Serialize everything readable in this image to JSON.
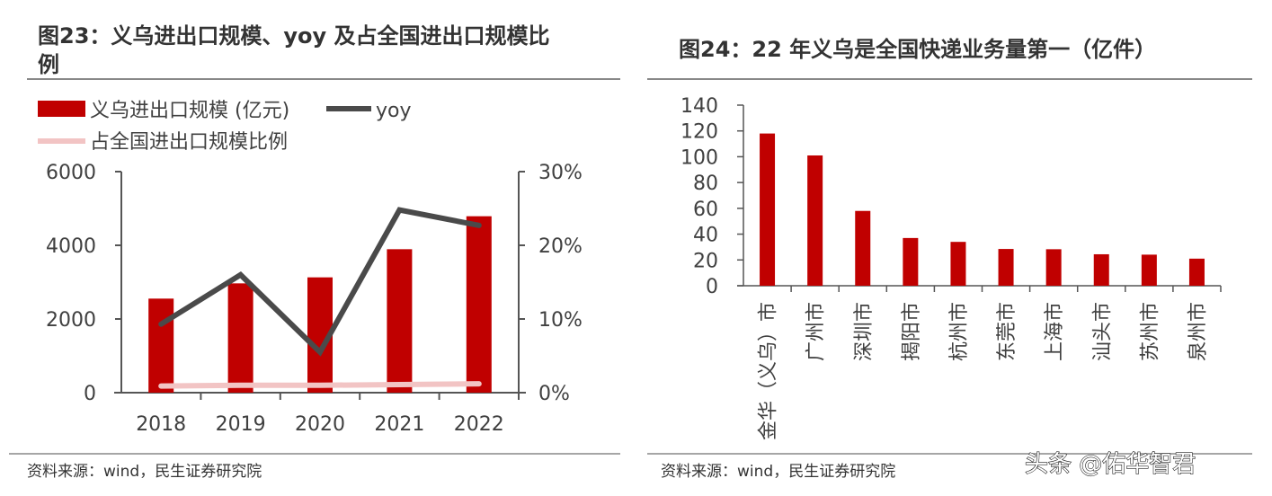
{
  "colors": {
    "bar": "#c00000",
    "yoy": "#4a4a4a",
    "share": "#f2c4c4",
    "axis": "#555555"
  },
  "chart_data": [
    {
      "type": "bar+line",
      "title": "图23：义乌进出口规模、yoy 及占全国进出口规模比例",
      "title_lines": [
        "图23：义乌进出口规模、yoy 及占全国进出口规模比",
        "例"
      ],
      "categories": [
        "2018",
        "2019",
        "2020",
        "2021",
        "2022"
      ],
      "series": [
        {
          "name": "义乌进出口规模 (亿元)",
          "type": "bar",
          "axis": "left",
          "values": [
            2553,
            2967,
            3130,
            3894,
            4789
          ]
        },
        {
          "name": "yoy",
          "type": "line",
          "axis": "right",
          "values": [
            9.3,
            16.0,
            5.5,
            24.8,
            22.7
          ]
        },
        {
          "name": "占全国进出口规模比例",
          "type": "line",
          "axis": "right",
          "values": [
            0.9,
            1.0,
            1.0,
            1.1,
            1.2
          ]
        }
      ],
      "ylim": [
        0,
        6000
      ],
      "yticks": [
        "0",
        "2000",
        "4000",
        "6000"
      ],
      "y2lim": [
        0,
        30
      ],
      "y2ticks": [
        "0%",
        "10%",
        "20%",
        "30%"
      ],
      "legend": "top-left",
      "grid": false,
      "source": "资料来源：wind，民生证券研究院"
    },
    {
      "type": "bar",
      "title": "图24：22 年义乌是全国快递业务量第一（亿件）",
      "categories": [
        "金华（义乌）市",
        "广州市",
        "深圳市",
        "揭阳市",
        "杭州市",
        "东莞市",
        "上海市",
        "汕头市",
        "苏州市",
        "泉州市"
      ],
      "values": [
        118,
        101,
        58,
        37,
        34,
        28.5,
        28.3,
        24.4,
        24.1,
        21
      ],
      "ylim": [
        0,
        140
      ],
      "yticks": [
        "0",
        "20",
        "40",
        "60",
        "80",
        "100",
        "120",
        "140"
      ],
      "grid": false,
      "source": "资料来源：wind，民生证券研究院"
    }
  ],
  "watermark": "头条 @佑华智君"
}
